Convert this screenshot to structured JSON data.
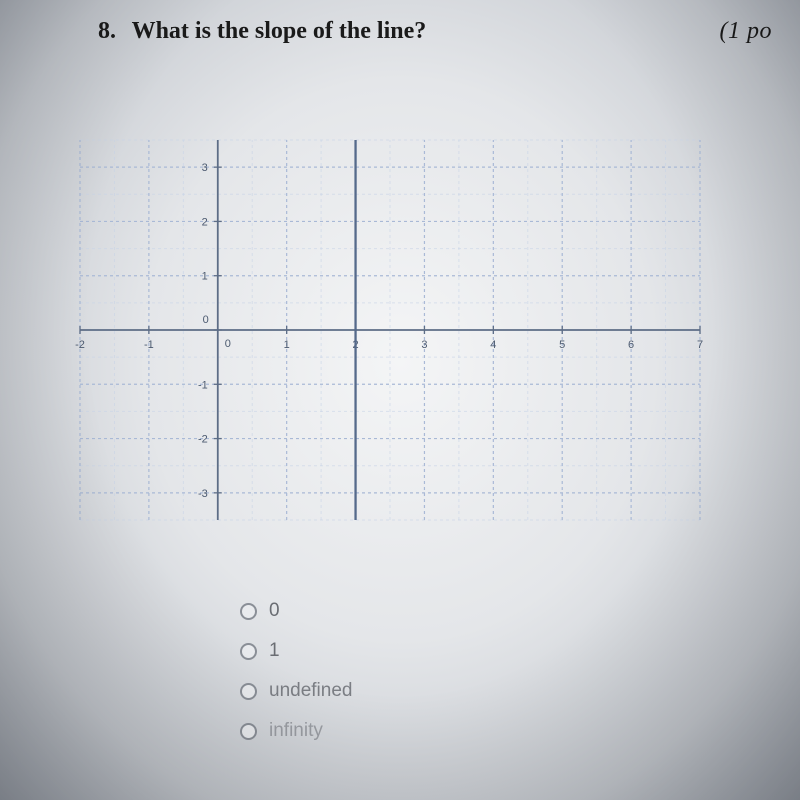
{
  "question": {
    "number": "8.",
    "text": "What is the slope of the line?",
    "points_label": "(1 po"
  },
  "graph": {
    "type": "line",
    "xlim": [
      -2,
      7
    ],
    "ylim": [
      -3.5,
      3.5
    ],
    "xtick_step": 1,
    "ytick_step": 1,
    "x_ticks": [
      -2,
      -1,
      0,
      1,
      2,
      3,
      4,
      5,
      6,
      7
    ],
    "y_ticks": [
      -3,
      -2,
      -1,
      0,
      1,
      2,
      3
    ],
    "grid_major_color": "#a9b9d6",
    "grid_minor_color": "#c8d4e7",
    "axis_color": "#5d6d86",
    "tick_label_color": "#4c5a70",
    "tick_label_fontsize": 11,
    "background_color": "transparent",
    "vertical_line": {
      "x": 2,
      "color": "#556a8b",
      "width": 2.3
    },
    "line_style_dashed": "3,3",
    "origin_label": "0"
  },
  "options": [
    {
      "label": "0"
    },
    {
      "label": "1"
    },
    {
      "label": "undefined"
    },
    {
      "label": "infinity"
    }
  ]
}
